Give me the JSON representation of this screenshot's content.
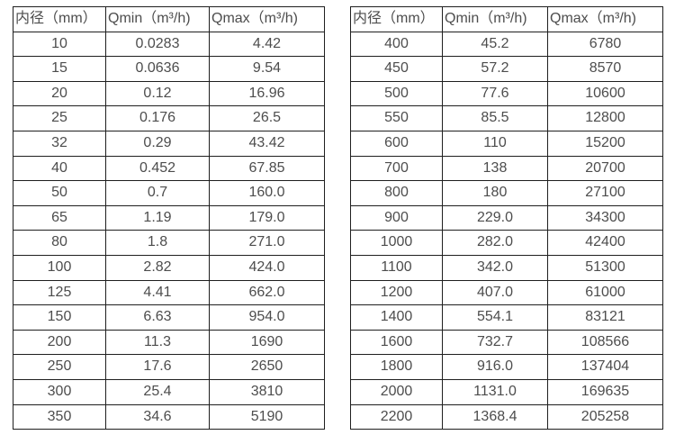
{
  "colors": {
    "background": "#ffffff",
    "border": "#1f1f1f",
    "text": "#4d4d4d"
  },
  "tables": [
    {
      "name": "flow-range-table-small-diameters",
      "headers": [
        "内径（mm）",
        "Qmin（m³/h)",
        "Qmax（m³/h)"
      ],
      "rows": [
        [
          "10",
          "0.0283",
          "4.42"
        ],
        [
          "15",
          "0.0636",
          "9.54"
        ],
        [
          "20",
          "0.12",
          "16.96"
        ],
        [
          "25",
          "0.176",
          "26.5"
        ],
        [
          "32",
          "0.29",
          "43.42"
        ],
        [
          "40",
          "0.452",
          "67.85"
        ],
        [
          "50",
          "0.7",
          "160.0"
        ],
        [
          "65",
          "1.19",
          "179.0"
        ],
        [
          "80",
          "1.8",
          "271.0"
        ],
        [
          "100",
          "2.82",
          "424.0"
        ],
        [
          "125",
          "4.41",
          "662.0"
        ],
        [
          "150",
          "6.63",
          "954.0"
        ],
        [
          "200",
          "11.3",
          "1690"
        ],
        [
          "250",
          "17.6",
          "2650"
        ],
        [
          "300",
          "25.4",
          "3810"
        ],
        [
          "350",
          "34.6",
          "5190"
        ]
      ]
    },
    {
      "name": "flow-range-table-large-diameters",
      "headers": [
        "内径（mm）",
        "Qmin（m³/h)",
        "Qmax（m³/h)"
      ],
      "rows": [
        [
          "400",
          "45.2",
          "6780"
        ],
        [
          "450",
          "57.2",
          "8570"
        ],
        [
          "500",
          "77.6",
          "10600"
        ],
        [
          "550",
          "85.5",
          "12800"
        ],
        [
          "600",
          "110",
          "15200"
        ],
        [
          "700",
          "138",
          "20700"
        ],
        [
          "800",
          "180",
          "27100"
        ],
        [
          "900",
          "229.0",
          "34300"
        ],
        [
          "1000",
          "282.0",
          "42400"
        ],
        [
          "1100",
          "342.0",
          "51300"
        ],
        [
          "1200",
          "407.0",
          "61000"
        ],
        [
          "1400",
          "554.1",
          "83121"
        ],
        [
          "1600",
          "732.7",
          "108566"
        ],
        [
          "1800",
          "916.0",
          "137404"
        ],
        [
          "2000",
          "1131.0",
          "169635"
        ],
        [
          "2200",
          "1368.4",
          "205258"
        ]
      ]
    }
  ]
}
